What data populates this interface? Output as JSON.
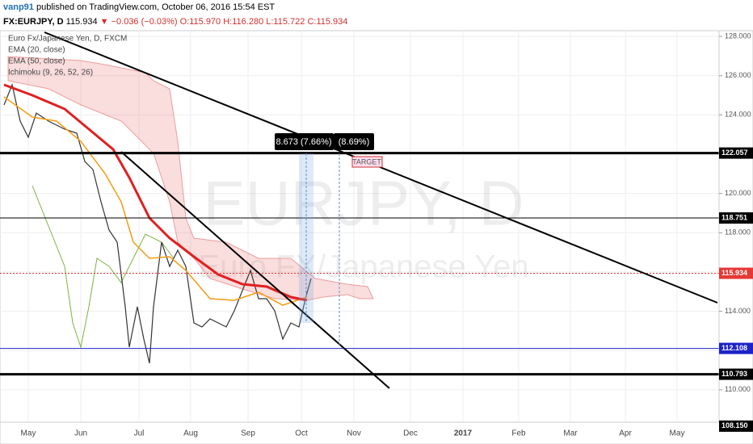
{
  "header": {
    "user": "vanp91",
    "published": "published on TradingView.com, October 06, 2016 15:54 EST",
    "symbol": "FX:EURJPY, D",
    "last": "115.934",
    "change": "▼ −0.036 (−0.03%)",
    "open": "O:115.970",
    "high": "H:116.280",
    "low": "L:115.722",
    "close": "C:115.934"
  },
  "legend": [
    "Euro Fx/Japanese Yen, D, FXCM",
    "EMA (20, close)",
    "EMA (50, close)",
    "Ichimoku (9, 26, 52, 26)"
  ],
  "watermark": {
    "symbol": "EURJPY, D",
    "name": "Euro FX/Japanese Yen"
  },
  "annotations": {
    "measure_1": "8.673 (7.66%)",
    "measure_2": "(8.69%)",
    "target": "TARGET"
  },
  "price_axis": {
    "ylim": [
      108.35,
      128.29
    ],
    "ticks": [
      {
        "value": 110,
        "label": "110.000"
      },
      {
        "value": 112,
        "label": "112.000"
      },
      {
        "value": 114,
        "label": "114.000"
      },
      {
        "value": 116,
        "label": "116.000"
      },
      {
        "value": 118,
        "label": "118.000"
      },
      {
        "value": 120,
        "label": "120.000"
      },
      {
        "value": 122,
        "label": "122.000"
      },
      {
        "value": 124,
        "label": "124.000"
      },
      {
        "value": 126,
        "label": "126.000"
      },
      {
        "value": 128,
        "label": "128.000"
      }
    ]
  },
  "price_levels": [
    {
      "value": 122.057,
      "label": "122.057",
      "color": "#000000"
    },
    {
      "value": 118.751,
      "label": "118.751",
      "color": "#000000"
    },
    {
      "value": 115.934,
      "label": "115.934",
      "color": "#e53935"
    },
    {
      "value": 112.108,
      "label": "112.108",
      "color": "#1e22c8"
    },
    {
      "value": 110.793,
      "label": "110.793",
      "color": "#000000"
    },
    {
      "value": 108.15,
      "label": "108.150",
      "color": "#000000"
    }
  ],
  "time_axis": [
    "May",
    "Jun",
    "Jul",
    "Aug",
    "Sep",
    "Oct",
    "Nov",
    "Dec",
    "2017",
    "Feb",
    "Mar",
    "Apr",
    "May"
  ]
}
